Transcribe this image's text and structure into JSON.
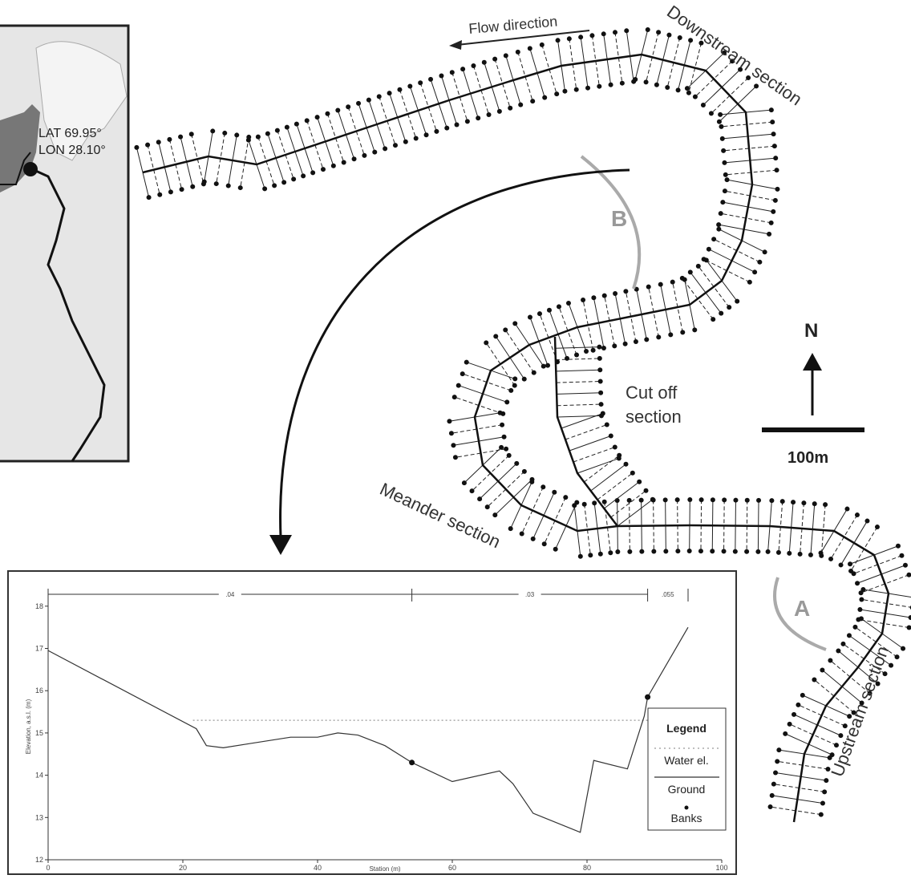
{
  "map": {
    "flow_label": "Flow direction",
    "downstream": "Downstream section",
    "upstream": "Upstream section",
    "meander": "Meander section",
    "cutoff_1": "Cut off",
    "cutoff_2": "section",
    "site_b": "B",
    "site_a": "A",
    "north": "N",
    "scale": "100m",
    "lat": "LAT 69.95°",
    "lon": "LON 28.10°"
  },
  "chart_data": {
    "type": "line",
    "xlabel": "Station (m)",
    "ylabel": "Elevation, a.s.l. (m)",
    "xlim": [
      0,
      100
    ],
    "ylim": [
      12,
      18.3
    ],
    "xticks": [
      0,
      20,
      40,
      60,
      80,
      100
    ],
    "yticks": [
      12,
      13,
      14,
      15,
      16,
      17,
      18
    ],
    "roughness_breaks": [
      0,
      54,
      89,
      95
    ],
    "roughness_labels": [
      ".04",
      ".03",
      ".055"
    ],
    "legend_title": "Legend",
    "series": [
      {
        "name": "Water el.",
        "color": "#999999",
        "style": "dotted",
        "x": [
          21.5,
          89
        ],
        "values": [
          15.3,
          15.3
        ]
      },
      {
        "name": "Ground",
        "color": "#333333",
        "style": "solid",
        "x": [
          0,
          22,
          23.5,
          26,
          30,
          36,
          40,
          43,
          46,
          50,
          54,
          60,
          67,
          69,
          72,
          79,
          81,
          86,
          88.5,
          89,
          95
        ],
        "values": [
          16.95,
          15.1,
          14.7,
          14.65,
          14.75,
          14.9,
          14.9,
          15.0,
          14.95,
          14.7,
          14.3,
          13.85,
          14.1,
          13.8,
          13.1,
          12.65,
          14.35,
          14.15,
          15.4,
          15.85,
          17.5
        ]
      },
      {
        "name": "Banks",
        "color": "#111111",
        "style": "points",
        "x": [
          54,
          89
        ],
        "values": [
          14.3,
          15.85
        ]
      }
    ]
  }
}
